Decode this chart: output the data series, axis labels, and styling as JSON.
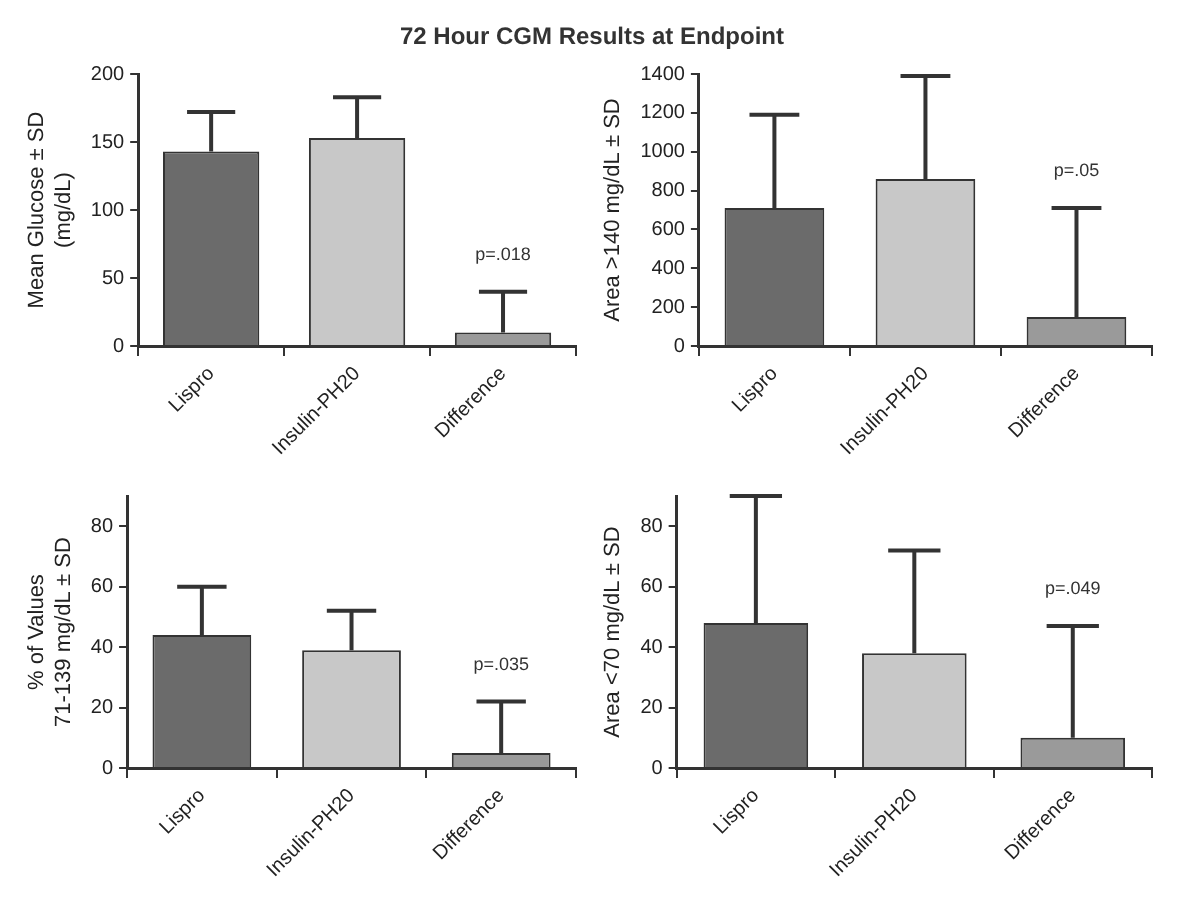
{
  "chart_data": [
    {
      "type": "bar",
      "title": "72 Hour CGM Results at Endpoint",
      "ylabel": "Mean Glucose ± SD\n(mg/dL)",
      "categories": [
        "Lispro",
        "Insulin-PH20",
        "Difference"
      ],
      "values": [
        143,
        153,
        10
      ],
      "colors": [
        "#6b6b6b",
        "#c8c8c8",
        "#9a9a9a"
      ],
      "errors": [
        [
          143,
          172
        ],
        [
          153,
          183
        ],
        [
          10,
          40
        ]
      ],
      "ylim": [
        0,
        200
      ],
      "yticks": [
        0,
        50,
        100,
        150,
        200
      ],
      "grid": false,
      "annotations": [
        {
          "text": "p=.018",
          "x": "Difference",
          "y": 40
        }
      ]
    },
    {
      "type": "bar",
      "ylabel": "Area >140 mg/dL ± SD",
      "categories": [
        "Lispro",
        "Insulin-PH20",
        "Difference"
      ],
      "values": [
        710,
        860,
        150
      ],
      "colors": [
        "#6b6b6b",
        "#c8c8c8",
        "#9a9a9a"
      ],
      "errors": [
        [
          710,
          1190
        ],
        [
          860,
          1390
        ],
        [
          150,
          710
        ]
      ],
      "ylim": [
        0,
        1400
      ],
      "yticks": [
        0,
        200,
        400,
        600,
        800,
        1000,
        1200,
        1400
      ],
      "grid": false,
      "annotations": [
        {
          "text": "p=.05",
          "x": "Difference",
          "y": 710
        }
      ]
    },
    {
      "type": "bar",
      "ylabel": "% of Values\n71-139 mg/dL ± SD",
      "categories": [
        "Lispro",
        "Insulin-PH20",
        "Difference"
      ],
      "values": [
        44,
        39,
        5
      ],
      "colors": [
        "#6b6b6b",
        "#c8c8c8",
        "#9a9a9a"
      ],
      "errors": [
        [
          44,
          60
        ],
        [
          39,
          52
        ],
        [
          5,
          22
        ]
      ],
      "ylim": [
        0,
        90
      ],
      "yticks": [
        0,
        20,
        40,
        60,
        80
      ],
      "grid": false,
      "annotations": [
        {
          "text": "p=.035",
          "x": "Difference",
          "y": 22
        }
      ]
    },
    {
      "type": "bar",
      "ylabel": "Area <70 mg/dL ± SD",
      "categories": [
        "Lispro",
        "Insulin-PH20",
        "Difference"
      ],
      "values": [
        48,
        38,
        10
      ],
      "colors": [
        "#6b6b6b",
        "#c8c8c8",
        "#9a9a9a"
      ],
      "errors": [
        [
          48,
          90
        ],
        [
          38,
          72
        ],
        [
          10,
          47
        ]
      ],
      "ylim": [
        0,
        90
      ],
      "yticks": [
        0,
        20,
        40,
        60,
        80
      ],
      "grid": false,
      "annotations": [
        {
          "text": "p=.049",
          "x": "Difference",
          "y": 47
        }
      ]
    }
  ]
}
